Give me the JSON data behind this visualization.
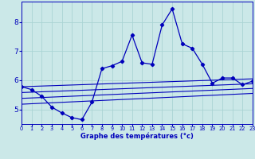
{
  "xlabel": "Graphe des températures (°c)",
  "ylabel": "",
  "background_color": "#cbe8e8",
  "line_color": "#0000bb",
  "grid_color": "#aad4d4",
  "xlim": [
    0,
    23
  ],
  "ylim": [
    4.5,
    8.7
  ],
  "xticks": [
    0,
    1,
    2,
    3,
    4,
    5,
    6,
    7,
    8,
    9,
    10,
    11,
    12,
    13,
    14,
    15,
    16,
    17,
    18,
    19,
    20,
    21,
    22,
    23
  ],
  "yticks": [
    5,
    6,
    7,
    8
  ],
  "main_line_x": [
    0,
    1,
    2,
    3,
    4,
    5,
    6,
    7,
    8,
    9,
    10,
    11,
    12,
    13,
    14,
    15,
    16,
    17,
    18,
    19,
    20,
    21,
    22,
    23
  ],
  "main_line_y": [
    5.78,
    5.68,
    5.45,
    5.08,
    4.88,
    4.72,
    4.65,
    5.25,
    6.4,
    6.5,
    6.65,
    7.55,
    6.6,
    6.55,
    7.9,
    8.45,
    7.25,
    7.1,
    6.55,
    5.9,
    6.08,
    6.08,
    5.85,
    5.97
  ],
  "trend_lines": [
    {
      "x": [
        0,
        23
      ],
      "y": [
        5.78,
        6.05
      ]
    },
    {
      "x": [
        0,
        23
      ],
      "y": [
        5.58,
        5.88
      ]
    },
    {
      "x": [
        0,
        23
      ],
      "y": [
        5.38,
        5.72
      ]
    },
    {
      "x": [
        0,
        23
      ],
      "y": [
        5.18,
        5.55
      ]
    }
  ]
}
